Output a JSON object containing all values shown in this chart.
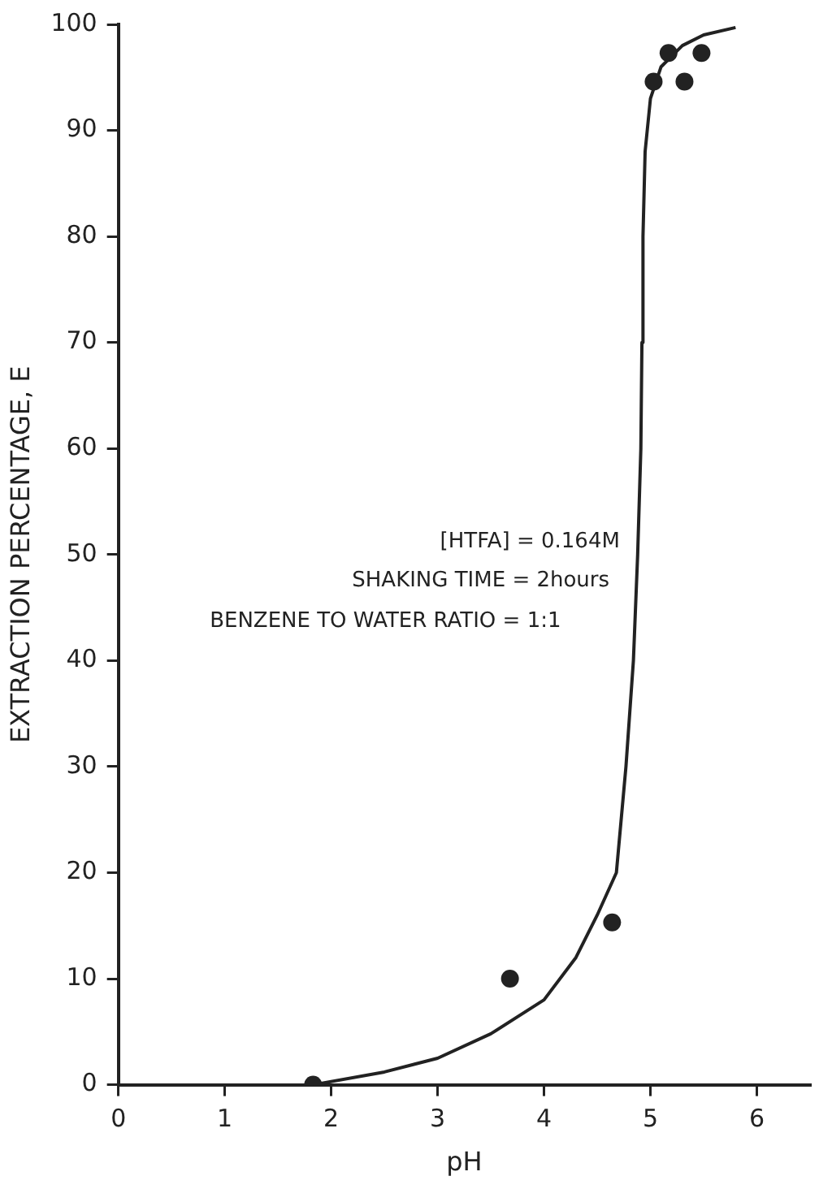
{
  "chart_data": {
    "type": "scatter",
    "xlabel": "pH",
    "ylabel": "EXTRACTION PERCENTAGE, E",
    "series": [
      {
        "color": "#222222",
        "marker": "circle",
        "x": [
          1.83,
          3.68,
          4.64,
          5.03,
          5.32,
          5.17,
          5.48
        ],
        "values": [
          0,
          10,
          15.3,
          94.6,
          94.6,
          97.3,
          97.3
        ]
      },
      {
        "type": "line",
        "color": "#222222",
        "marker": "none",
        "line_style": "solid",
        "x": [
          1.83,
          2.5,
          3,
          3.5,
          4,
          4.3,
          4.5,
          4.68,
          4.77,
          4.84,
          4.88,
          4.91,
          4.92,
          4.93,
          4.95,
          5.0,
          5.1,
          5.3,
          5.5,
          5.8
        ],
        "values": [
          0,
          1.2,
          2.5,
          4.8,
          8,
          12,
          16,
          20,
          30,
          40,
          50,
          60,
          70,
          80,
          88,
          93,
          96,
          98,
          99,
          99.7
        ]
      }
    ],
    "xlim": [
      0,
      6.5
    ],
    "xticks": [
      0,
      1,
      2,
      3,
      4,
      5,
      6
    ],
    "ylim": [
      0,
      100
    ],
    "yticks": [
      0,
      10,
      20,
      30,
      40,
      50,
      60,
      70,
      80,
      90,
      100
    ],
    "grid": false,
    "legend": false,
    "annotations": [
      "[HTFA] = 0.164M",
      "SHAKING TIME = 2hours",
      "BENZENE TO WATER RATIO = 1:1"
    ]
  }
}
